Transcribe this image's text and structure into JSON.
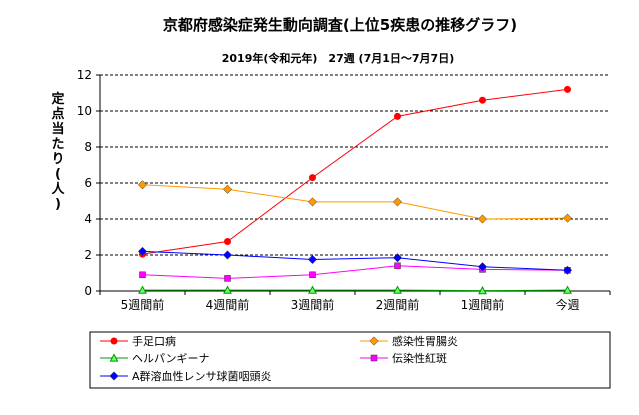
{
  "chart_data": {
    "type": "line",
    "title": "京都府感染症発生動向調査(上位5疾患の推移グラフ)",
    "subtitle": "2019年(令和元年)　27週 (7月1日～7月7日)",
    "ylabel": "定点当たり(人)",
    "xlabel": "",
    "categories": [
      "5週間前",
      "4週間前",
      "3週間前",
      "2週間前",
      "1週間前",
      "今週"
    ],
    "ylim": [
      0,
      12
    ],
    "yticks": [
      0,
      2,
      4,
      6,
      8,
      10,
      12
    ],
    "grid": "horizontal",
    "legend_position": "bottom",
    "series": [
      {
        "name": "手足口病",
        "color": "#ff0000",
        "marker": "circle",
        "values": [
          2.05,
          2.75,
          6.3,
          9.7,
          10.6,
          11.2
        ]
      },
      {
        "name": "感染性胃腸炎",
        "color": "#ff9900",
        "marker": "diamond",
        "values": [
          5.9,
          5.65,
          4.95,
          4.95,
          4.0,
          4.05
        ]
      },
      {
        "name": "ヘルパンギーナ",
        "color": "#009900",
        "marker": "triangle",
        "values": [
          0.05,
          0.05,
          0.05,
          0.05,
          0.02,
          0.05
        ]
      },
      {
        "name": "伝染性紅斑",
        "color": "#ff00ff",
        "marker": "square",
        "values": [
          0.9,
          0.7,
          0.9,
          1.4,
          1.2,
          1.15
        ]
      },
      {
        "name": "A群溶血性レンサ球菌咽頭炎",
        "color": "#0000ff",
        "marker": "diamond",
        "values": [
          2.2,
          2.0,
          1.75,
          1.85,
          1.35,
          1.15
        ]
      }
    ]
  }
}
